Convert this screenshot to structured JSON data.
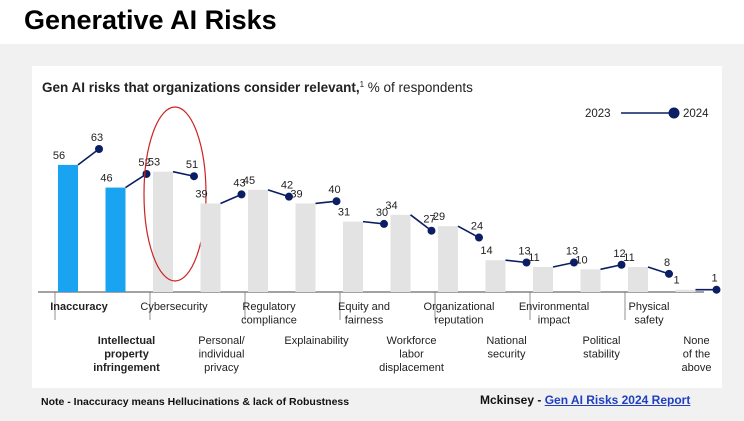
{
  "page": {
    "title": "Generative AI Risks",
    "note": "Note - Inaccuracy means Hellucinations & lack of Robustness",
    "source_prefix": "Mckinsey - ",
    "source_link": "Gen AI Risks 2024 Report"
  },
  "chart_data": {
    "type": "bar",
    "title": "Gen AI risks that organizations consider relevant,",
    "title_footnote": "1",
    "subtitle": " % of respondents",
    "ylim": [
      0,
      70
    ],
    "legend": {
      "position": "top-right",
      "from_label": "2023",
      "to_label": "2024"
    },
    "colors": {
      "highlight": "#1aa3f0",
      "bar": "#e3e3e3",
      "dot": "#0b1e63",
      "circle": "#cc2222"
    },
    "categories": [
      {
        "label": [
          "Inaccuracy"
        ],
        "v2023": 56,
        "v2024": 63,
        "highlight": true,
        "row": 1
      },
      {
        "label": [
          "Intellectual",
          "property",
          "infringement"
        ],
        "v2023": 46,
        "v2024": 52,
        "highlight": true,
        "row": 2
      },
      {
        "label": [
          "Cybersecurity"
        ],
        "v2023": 53,
        "v2024": 51,
        "highlight": false,
        "circled": true,
        "row": 1
      },
      {
        "label": [
          "Personal/",
          "individual",
          "privacy"
        ],
        "v2023": 39,
        "v2024": 43,
        "highlight": false,
        "row": 2
      },
      {
        "label": [
          "Regulatory",
          "compliance"
        ],
        "v2023": 45,
        "v2024": 42,
        "highlight": false,
        "row": 1
      },
      {
        "label": [
          "Explainability"
        ],
        "v2023": 39,
        "v2024": 40,
        "highlight": false,
        "row": 2
      },
      {
        "label": [
          "Equity and",
          "fairness"
        ],
        "v2023": 31,
        "v2024": 30,
        "highlight": false,
        "row": 1
      },
      {
        "label": [
          "Workforce",
          "labor",
          "displacement"
        ],
        "v2023": 34,
        "v2024": 27,
        "highlight": false,
        "row": 2
      },
      {
        "label": [
          "Organizational",
          "reputation"
        ],
        "v2023": 29,
        "v2024": 24,
        "highlight": false,
        "row": 1
      },
      {
        "label": [
          "National",
          "security"
        ],
        "v2023": 14,
        "v2024": 13,
        "highlight": false,
        "row": 2
      },
      {
        "label": [
          "Environmental",
          "impact"
        ],
        "v2023": 11,
        "v2024": 13,
        "highlight": false,
        "row": 1
      },
      {
        "label": [
          "Political",
          "stability"
        ],
        "v2023": 10,
        "v2024": 12,
        "highlight": false,
        "row": 2
      },
      {
        "label": [
          "Physical",
          "safety"
        ],
        "v2023": 11,
        "v2024": 8,
        "highlight": false,
        "row": 1
      },
      {
        "label": [
          "None",
          "of the",
          "above"
        ],
        "v2023": 1,
        "v2024": 1,
        "highlight": false,
        "row": 2
      }
    ]
  }
}
